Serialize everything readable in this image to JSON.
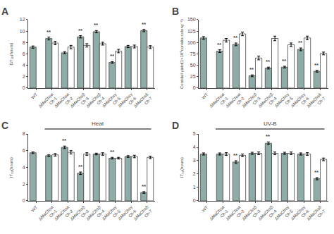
{
  "chart_data": [
    {
      "type": "bar",
      "title": "A",
      "ylabel": "GT₅₀(hours)",
      "categories": [
        "WT",
        "ΔMaChsα\nCh-1",
        "ΔMaChsα\nCh-2",
        "ΔMaChsβ\nCh-3",
        "ΔMaChsβ\nCh-4",
        "ΔMaChsγ\nCh-5",
        "ΔMaChsγ\nCh-6",
        "ΔMaChsδ\nCh-7"
      ],
      "series": [
        {
          "color": "#8fada8",
          "values": [
            7.2,
            8.7,
            6.2,
            9.0,
            9.9,
            4.5,
            7.3,
            10.1
          ],
          "errors": [
            0.2,
            0.25,
            0.2,
            0.2,
            0.2,
            0.15,
            0.2,
            0.2
          ]
        },
        {
          "color": "#ffffff",
          "values": [
            null,
            7.9,
            7.2,
            7.5,
            7.8,
            6.5,
            7.3,
            7.2
          ],
          "errors": [
            0,
            0.3,
            0.3,
            0.3,
            0.25,
            0.3,
            0.25,
            0.25
          ]
        }
      ],
      "annotations": [
        {
          "text": "**",
          "category": "ΔMaChsα\nCh-1"
        },
        {
          "text": "**",
          "category": "ΔMaChsβ\nCh-3"
        },
        {
          "text": "**",
          "category": "ΔMaChsβ\nCh-4"
        },
        {
          "text": "**",
          "category": "ΔMaChsγ\nCh-5"
        },
        {
          "text": "**",
          "category": "ΔMaChsδ\nCh-7"
        }
      ],
      "ylim": [
        0,
        12
      ],
      "yticks": [
        0,
        2,
        4,
        6,
        8,
        10,
        12
      ],
      "grid": false
    },
    {
      "type": "bar",
      "title": "B",
      "ylabel": "Conidial yield(1×10⁸conidia colony⁻¹)",
      "categories": [
        "WT",
        "ΔMaChsα\nCh-1",
        "ΔMaChsα\nCh-2",
        "ΔMaChsβ\nCh-3",
        "ΔMaChsβ\nCh-4",
        "ΔMaChsγ\nCh-5",
        "ΔMaChsγ\nCh-6",
        "ΔMaChsδ\nCh-7"
      ],
      "series": [
        {
          "color": "#8fada8",
          "values": [
            110,
            81,
            96,
            27,
            44,
            46,
            85,
            37
          ],
          "errors": [
            3,
            3,
            3,
            2,
            2,
            2,
            3,
            2
          ]
        },
        {
          "color": "#ffffff",
          "values": [
            null,
            105,
            119,
            66,
            109,
            95,
            110,
            76
          ],
          "errors": [
            0,
            4,
            4,
            4,
            5,
            4,
            4,
            3
          ]
        }
      ],
      "annotations": [
        {
          "text": "**",
          "category": "ΔMaChsα\nCh-1"
        },
        {
          "text": "**",
          "category": "ΔMaChsα\nCh-2"
        },
        {
          "text": "**",
          "category": "ΔMaChsβ\nCh-3"
        },
        {
          "text": "**",
          "category": "ΔMaChsβ\nCh-4"
        },
        {
          "text": "**",
          "category": "ΔMaChsγ\nCh-5"
        },
        {
          "text": "**",
          "category": "ΔMaChsγ\nCh-6"
        },
        {
          "text": "**",
          "category": "ΔMaChsδ\nCh-7"
        }
      ],
      "ylim": [
        0,
        150
      ],
      "yticks": [
        0,
        25,
        50,
        75,
        100,
        125,
        150
      ],
      "grid": false
    },
    {
      "type": "bar",
      "title": "C",
      "subtitle": "Heat",
      "ylabel": "IT₅₀(hours)",
      "categories": [
        "WT",
        "ΔMaChsα\nCh-1",
        "ΔMaChsα\nCh-2",
        "ΔMaChsβ\nCh-3",
        "ΔMaChsβ\nCh-4",
        "ΔMaChsγ\nCh-5",
        "ΔMaChsγ\nCh-6",
        "ΔMaChsδ\nCh-7"
      ],
      "series": [
        {
          "color": "#8fada8",
          "values": [
            5.75,
            5.4,
            6.4,
            3.3,
            5.6,
            5.1,
            5.3,
            1.0
          ],
          "errors": [
            0.1,
            0.1,
            0.15,
            0.15,
            0.1,
            0.1,
            0.1,
            0.1
          ]
        },
        {
          "color": "#ffffff",
          "values": [
            null,
            5.5,
            5.8,
            5.6,
            5.6,
            5.1,
            5.3,
            5.2
          ],
          "errors": [
            0,
            0.15,
            0.2,
            0.15,
            0.15,
            0.1,
            0.15,
            0.15
          ]
        }
      ],
      "annotations": [
        {
          "text": "**",
          "category": "ΔMaChsα\nCh-2"
        },
        {
          "text": "**",
          "category": "ΔMaChsβ\nCh-3"
        },
        {
          "text": "**",
          "category": "ΔMaChsγ\nCh-5"
        },
        {
          "text": "**",
          "category": "ΔMaChsδ\nCh-7"
        }
      ],
      "ylim": [
        0,
        8
      ],
      "yticks": [
        0,
        2,
        4,
        6,
        8
      ],
      "grid": false
    },
    {
      "type": "bar",
      "title": "D",
      "subtitle": "UV-B",
      "ylabel": "IT₅₀(hours)",
      "categories": [
        "WT",
        "ΔMaChsα\nCh-1",
        "ΔMaChsα\nCh-2",
        "ΔMaChsβ\nCh-3",
        "ΔMaChsβ\nCh-4",
        "ΔMaChsγ\nCh-5",
        "ΔMaChsγ\nCh-6",
        "ΔMaChsδ\nCh-7"
      ],
      "series": [
        {
          "color": "#8fada8",
          "values": [
            3.5,
            3.5,
            2.9,
            3.55,
            4.3,
            3.55,
            3.5,
            1.65
          ],
          "errors": [
            0.08,
            0.08,
            0.1,
            0.08,
            0.1,
            0.08,
            0.08,
            0.08
          ]
        },
        {
          "color": "#ffffff",
          "values": [
            null,
            3.5,
            3.4,
            3.55,
            3.55,
            3.55,
            3.5,
            3.1
          ],
          "errors": [
            0,
            0.1,
            0.1,
            0.1,
            0.1,
            0.1,
            0.1,
            0.1
          ]
        }
      ],
      "annotations": [
        {
          "text": "**",
          "category": "ΔMaChsα\nCh-2"
        },
        {
          "text": "**",
          "category": "ΔMaChsβ\nCh-4"
        },
        {
          "text": "**",
          "category": "ΔMaChsδ\nCh-7"
        }
      ],
      "ylim": [
        0,
        5
      ],
      "yticks": [
        0,
        1,
        2,
        3,
        4,
        5
      ],
      "grid": false
    }
  ]
}
